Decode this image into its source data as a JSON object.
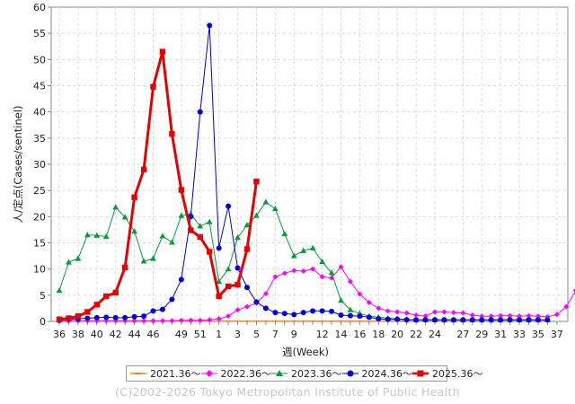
{
  "chart_data": {
    "type": "line",
    "ylabel": "人/定点(Cases/sentinel)",
    "xlabel": "週(Week)",
    "ylim": [
      0,
      60
    ],
    "yticks": [
      0,
      5,
      10,
      15,
      20,
      25,
      30,
      35,
      40,
      45,
      50,
      55,
      60
    ],
    "x_tick_labels": [
      "36",
      "38",
      "40",
      "42",
      "44",
      "46",
      "49",
      "51",
      "1",
      "3",
      "5",
      "7",
      "9",
      "12",
      "14",
      "16",
      "18",
      "20",
      "22",
      "24",
      "27",
      "29",
      "31",
      "33",
      "35",
      "37"
    ],
    "grid": true,
    "legend_position": "bottom",
    "footer": "(C)2002-2026 Tokyo Metropolitan Institute of Public Health",
    "series": [
      {
        "name": "2021.36～",
        "color": "#f47f20",
        "marker": "dash",
        "values": [
          0.05,
          0.05,
          0.05,
          0.05,
          0.05,
          0.05,
          0.05,
          0.05,
          0.05,
          0.05,
          0.05,
          0.05,
          0.05,
          0.05,
          0.05,
          0.05,
          0.05,
          0.05,
          0.05,
          0.05,
          0.05,
          0.05,
          0.05,
          0.05,
          0.05,
          0.05,
          0.05,
          0.05,
          0.05,
          0.05,
          0.05,
          0.05,
          0.05,
          0.05,
          0.05,
          0.05,
          0.05,
          0.05,
          0.05,
          0.05,
          0.05,
          0.05,
          0.05,
          0.05,
          0.05,
          0.05,
          0.05,
          0.05,
          0.05,
          0.05,
          0.05,
          0.05,
          0.05
        ]
      },
      {
        "name": "2022.36～",
        "color": "#ff00ff",
        "marker": "diamond",
        "values": [
          0.1,
          0.1,
          0.1,
          0.1,
          0.1,
          0.1,
          0.1,
          0.1,
          0.1,
          0.1,
          0.1,
          0.1,
          0.1,
          0.2,
          0.2,
          0.2,
          0.3,
          0.5,
          1.0,
          2.2,
          2.8,
          3.5,
          5.3,
          8.5,
          9.2,
          9.7,
          9.6,
          10.0,
          8.5,
          8.3,
          10.4,
          7.6,
          5.2,
          3.6,
          2.5,
          2.0,
          1.8,
          1.6,
          1.2,
          1.0,
          1.8,
          1.8,
          1.7,
          1.6,
          1.2,
          1.0,
          1.0,
          1.1,
          1.1,
          1.0,
          1.1,
          1.0,
          0.9,
          1.3,
          2.8,
          5.9
        ]
      },
      {
        "name": "2023.36～",
        "color": "#0b9a3c",
        "marker": "triangle",
        "values": [
          5.9,
          11.3,
          12.0,
          16.5,
          16.4,
          16.2,
          21.8,
          19.9,
          17.2,
          11.5,
          12.0,
          16.3,
          15.1,
          20.2,
          20.5,
          18.2,
          19.0,
          7.6,
          10.0,
          16.0,
          18.4,
          20.2,
          22.8,
          21.5,
          16.7,
          12.5,
          13.5,
          14.0,
          11.4,
          9.3,
          4.0,
          2.2,
          1.5,
          1.0,
          0.8,
          0.6,
          0.5,
          0.4,
          0.3,
          0.3,
          0.3,
          0.3,
          0.3,
          0.3,
          0.3,
          0.3,
          0.3,
          0.3,
          0.3,
          0.3,
          0.3,
          0.3,
          0.3
        ]
      },
      {
        "name": "2024.36～",
        "color": "#0000dd",
        "marker": "circle",
        "values": [
          0.2,
          0.4,
          0.5,
          0.6,
          0.7,
          0.8,
          0.7,
          0.7,
          0.9,
          1.0,
          2.0,
          2.3,
          4.2,
          8.0,
          20.0,
          40.0,
          56.5,
          14.0,
          22.0,
          10.2,
          6.5,
          3.7,
          2.5,
          1.7,
          1.5,
          1.3,
          1.7,
          2.0,
          2.0,
          1.9,
          1.2,
          1.1,
          1.0,
          0.8,
          0.5,
          0.4,
          0.4,
          0.3,
          0.3,
          0.3,
          0.3,
          0.3,
          0.3,
          0.3,
          0.3,
          0.3,
          0.3,
          0.3,
          0.3,
          0.3,
          0.3,
          0.3,
          0.3
        ]
      },
      {
        "name": "2025.36～",
        "color": "#e60000",
        "marker": "square",
        "values": [
          0.4,
          0.6,
          1.0,
          1.8,
          3.2,
          4.8,
          5.5,
          10.3,
          23.7,
          29.0,
          44.8,
          51.5,
          35.8,
          25.1,
          17.4,
          16.1,
          13.3,
          4.8,
          6.7,
          7.0,
          13.8,
          26.7
        ]
      }
    ]
  }
}
